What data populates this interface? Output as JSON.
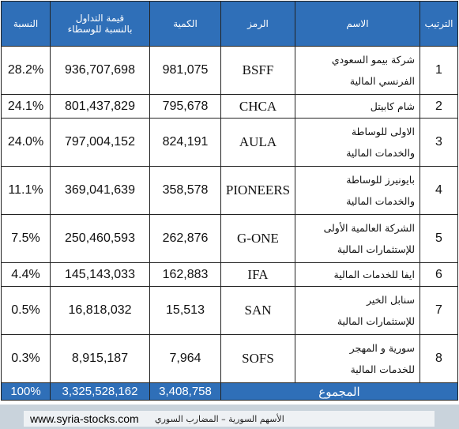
{
  "table": {
    "header": [
      "الترتيب",
      "الاسم",
      "الرمز",
      "الكمية",
      [
        "قيمة التداول",
        "بالنسبة للوسطاء"
      ],
      "النسبة"
    ],
    "rows": [
      [
        "1",
        [
          "شركة بيمو السعودي",
          "الفرنسي المالية"
        ],
        "BSFF",
        "981,075",
        "936,707,698",
        "28.2%"
      ],
      [
        "2",
        [
          "شام كابيتل"
        ],
        "CHCA",
        "795,678",
        "801,437,829",
        "24.1%"
      ],
      [
        "3",
        [
          "الاولى للوساطة",
          "والخدمات المالية"
        ],
        "AULA",
        "824,191",
        "797,004,152",
        "24.0%"
      ],
      [
        "4",
        [
          "بايونيرز للوساطة",
          "والخدمات المالية"
        ],
        "PIONEERS",
        "358,578",
        "369,041,639",
        "11.1%"
      ],
      [
        "5",
        [
          "الشركة العالمية الأولى",
          "للإستثمارات المالية"
        ],
        "G-ONE",
        "262,876",
        "250,460,593",
        "7.5%"
      ],
      [
        "6",
        [
          "ايفا للخدمات المالية"
        ],
        "IFA",
        "162,883",
        "145,143,033",
        "4.4%"
      ],
      [
        "7",
        [
          "سنابل الخير",
          "للإستثمارات المالية"
        ],
        "SAN",
        "15,513",
        "16,818,032",
        "0.5%"
      ],
      [
        "8",
        [
          "سورية و المهجر",
          "للخدمات المالية"
        ],
        "SOFS",
        "7,964",
        "8,915,187",
        "0.3%"
      ]
    ],
    "total": {
      "label": "المجموع",
      "quantity": "3,408,758",
      "value": "3,325,528,162",
      "percent": "100%"
    }
  },
  "footer": {
    "url": "www.syria-stocks.com",
    "caption": "الأسهم السورية – المضارب السوري"
  }
}
